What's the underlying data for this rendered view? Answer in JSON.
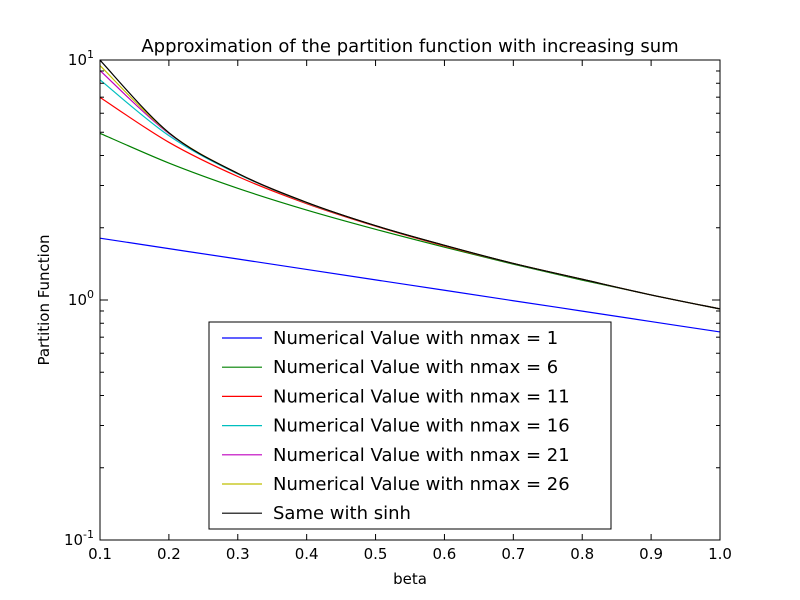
{
  "chart_data": {
    "type": "line",
    "title": "Approximation of the partition function with increasing sum",
    "xlabel": "beta",
    "ylabel": "Partition Function",
    "xlim": [
      0.1,
      1.0
    ],
    "ylim": [
      0.1,
      10
    ],
    "yscale": "log",
    "grid": false,
    "legend_position": "lower-center",
    "xticks": [
      "0.1",
      "0.2",
      "0.3",
      "0.4",
      "0.5",
      "0.6",
      "0.7",
      "0.8",
      "0.9",
      "1.0"
    ],
    "yticks": [
      {
        "base": "10",
        "exp": "-1"
      },
      {
        "base": "10",
        "exp": "0"
      },
      {
        "base": "10",
        "exp": "1"
      }
    ],
    "x": [
      0.1,
      0.2,
      0.3,
      0.4,
      0.5,
      0.6,
      0.7,
      0.8,
      0.9,
      1.0
    ],
    "series": [
      {
        "name": "Numerical Value with nmax = 1",
        "color": "#0000ff",
        "values": [
          1.81,
          1.637,
          1.482,
          1.341,
          1.213,
          1.098,
          0.993,
          0.899,
          0.813,
          0.736
        ]
      },
      {
        "name": "Numerical Value with nmax = 6",
        "color": "#008000",
        "values": [
          4.95,
          3.72,
          2.92,
          2.37,
          1.97,
          1.66,
          1.41,
          1.21,
          1.05,
          0.917
        ]
      },
      {
        "name": "Numerical Value with nmax = 11",
        "color": "#ff0000",
        "values": [
          6.99,
          4.54,
          3.27,
          2.52,
          2.03,
          1.68,
          1.42,
          1.22,
          1.05,
          0.918
        ]
      },
      {
        "name": "Numerical Value with nmax = 16",
        "color": "#00bfbf",
        "values": [
          8.27,
          4.84,
          3.35,
          2.54,
          2.04,
          1.69,
          1.42,
          1.22,
          1.05,
          0.918
        ]
      },
      {
        "name": "Numerical Value with nmax = 21",
        "color": "#bf00bf",
        "values": [
          9.04,
          4.94,
          3.37,
          2.55,
          2.04,
          1.69,
          1.42,
          1.22,
          1.05,
          0.918
        ]
      },
      {
        "name": "Numerical Value with nmax = 26",
        "color": "#bfbf00",
        "values": [
          9.48,
          4.97,
          3.37,
          2.55,
          2.04,
          1.69,
          1.42,
          1.22,
          1.05,
          0.918
        ]
      },
      {
        "name": "Same with sinh",
        "color": "#000000",
        "values": [
          9.98,
          4.98,
          3.37,
          2.55,
          2.04,
          1.69,
          1.42,
          1.22,
          1.05,
          0.918
        ]
      }
    ]
  }
}
